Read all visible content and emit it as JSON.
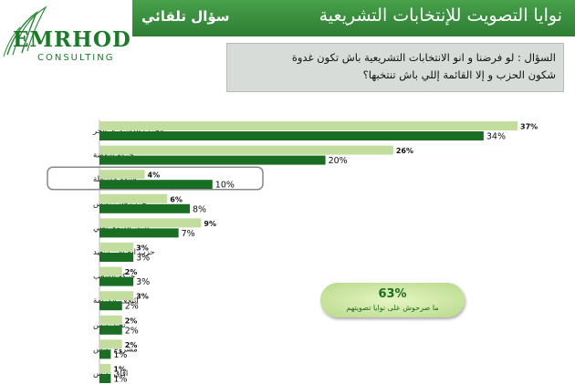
{
  "header": {
    "title": "نوايا التصويت للإنتخابات التشريعية",
    "tag": "سؤال تلقائي"
  },
  "logo": {
    "name": "EMRHOD",
    "sub": "CONSULTING"
  },
  "question": {
    "line1": "السؤال : لو فرضنا و انو الانتخابات التشريعية باش تكون غدوة",
    "line2": "شكون الحزب و إلا القائمة إللي باش تنتخبها؟"
  },
  "badge": {
    "value": "63%",
    "caption": "ما صرحوش على نوايا تصويتهم"
  },
  "colors": {
    "light": "#c3dd9e",
    "dark": "#1a6e23",
    "header": "#3a8f3f"
  },
  "chart_data": {
    "type": "bar",
    "orientation": "horizontal",
    "categories": [
      "الحزب الدستوري الحر",
      "حركة النهضة",
      "قائمة مستقلة",
      "حزب قلب تونس",
      "التيار الديمقراطي",
      "حزب الصافي سعيد",
      "حركة الشعب",
      "إئتلاف الكرامة",
      "تحيا تونس",
      "مشروع تونس",
      "افاق تونس"
    ],
    "series": [
      {
        "values": [
          37,
          26,
          4,
          6,
          9,
          3,
          2,
          3,
          2,
          2,
          1
        ],
        "labels": [
          "37%",
          "26%",
          "4%",
          "6%",
          "9%",
          "3%",
          "2%",
          "3%",
          "2%",
          "2%",
          "1%"
        ],
        "color": "#c3dd9e"
      },
      {
        "values": [
          34,
          20,
          10,
          8,
          7,
          3,
          3,
          2,
          2,
          1,
          1
        ],
        "labels": [
          "34%",
          "20%",
          "10%",
          "8%",
          "7%",
          "3%",
          "3%",
          "2%",
          "2%",
          "1%",
          "1%"
        ],
        "color": "#1a6e23"
      }
    ],
    "highlighted_category": "قائمة مستقلة",
    "xlim": [
      0,
      37
    ],
    "grid": false
  }
}
